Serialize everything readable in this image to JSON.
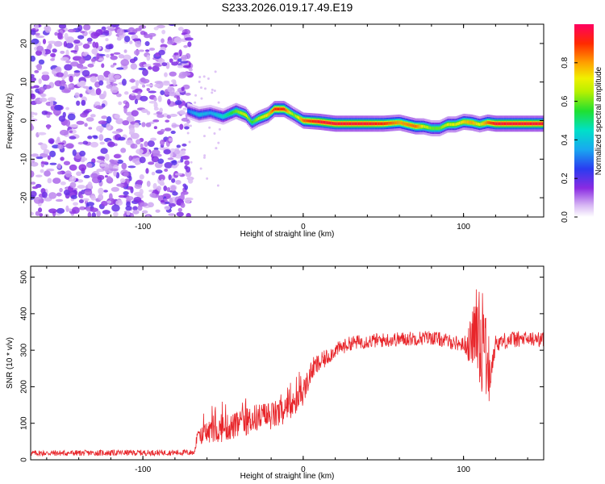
{
  "title": "S233.2026.019.17.49.E19",
  "colors": {
    "snr_line": "#e8252a",
    "purple": "#8a2be2"
  },
  "chart_data": [
    {
      "type": "heatmap",
      "name": "spectrogram",
      "xlabel": "Height of straight line (km)",
      "ylabel": "Frequency (Hz)",
      "xlim": [
        -170,
        150
      ],
      "ylim": [
        -25,
        25
      ],
      "xticks": [
        -100,
        0,
        100
      ],
      "yticks": [
        -20,
        -10,
        0,
        10,
        20
      ],
      "colorbar": {
        "label": "Normalized spectral amplitude",
        "range": [
          0,
          1
        ],
        "ticks": [
          "0.0",
          "0.2",
          "0.4",
          "0.6",
          "0.8"
        ]
      },
      "noise_region_x": [
        -170,
        -72
      ],
      "ridge": {
        "description": "dominant frequency track",
        "x": [
          -72,
          -65,
          -58,
          -50,
          -42,
          -36,
          -32,
          -28,
          -22,
          -18,
          -12,
          -6,
          0,
          10,
          20,
          30,
          40,
          50,
          60,
          70,
          75,
          80,
          85,
          90,
          95,
          100,
          105,
          110,
          115,
          120,
          130,
          140,
          148
        ],
        "y": [
          2.5,
          1.5,
          2.0,
          1.0,
          2.5,
          1.5,
          -0.5,
          0.5,
          1.5,
          3.0,
          3.0,
          1.5,
          0.0,
          -0.3,
          -0.8,
          -0.8,
          -0.8,
          -0.8,
          -0.5,
          -1.5,
          -1.5,
          -2.0,
          -2.0,
          -1.0,
          -1.0,
          -0.3,
          -0.5,
          -1.0,
          -0.5,
          -0.8,
          -0.8,
          -0.8,
          -0.8
        ],
        "amplitude": [
          0.3,
          0.4,
          0.35,
          0.45,
          0.6,
          0.7,
          0.55,
          0.65,
          0.75,
          0.9,
          0.9,
          0.6,
          0.85,
          0.95,
          0.95,
          0.95,
          0.95,
          0.9,
          0.8,
          0.85,
          0.7,
          0.6,
          0.6,
          0.7,
          0.7,
          0.75,
          0.8,
          0.7,
          0.85,
          0.95,
          0.95,
          0.95,
          0.95
        ]
      }
    },
    {
      "type": "line",
      "name": "snr",
      "xlabel": "Height of straight line (km)",
      "ylabel": "SNR (10 * v/v)",
      "xlim": [
        -170,
        150
      ],
      "ylim": [
        0,
        530
      ],
      "xticks": [
        -100,
        0,
        100
      ],
      "yticks": [
        0,
        100,
        200,
        300,
        400,
        500
      ],
      "trend": {
        "x": [
          -170,
          -68,
          -66,
          -60,
          -50,
          -40,
          -30,
          -20,
          -12,
          -6,
          0,
          6,
          12,
          20,
          30,
          40,
          60,
          80,
          100,
          104,
          108,
          112,
          116,
          120,
          130,
          150
        ],
        "y": [
          18,
          20,
          60,
          75,
          85,
          95,
          115,
          120,
          130,
          150,
          185,
          250,
          270,
          300,
          320,
          325,
          330,
          335,
          315,
          320,
          360,
          330,
          210,
          320,
          330,
          330
        ]
      },
      "noise_amplitude": {
        "x": [
          -170,
          -68,
          -60,
          -20,
          0,
          20,
          100,
          104,
          112,
          118,
          150
        ],
        "y": [
          8,
          8,
          35,
          40,
          35,
          20,
          20,
          60,
          160,
          25,
          20
        ]
      }
    }
  ]
}
